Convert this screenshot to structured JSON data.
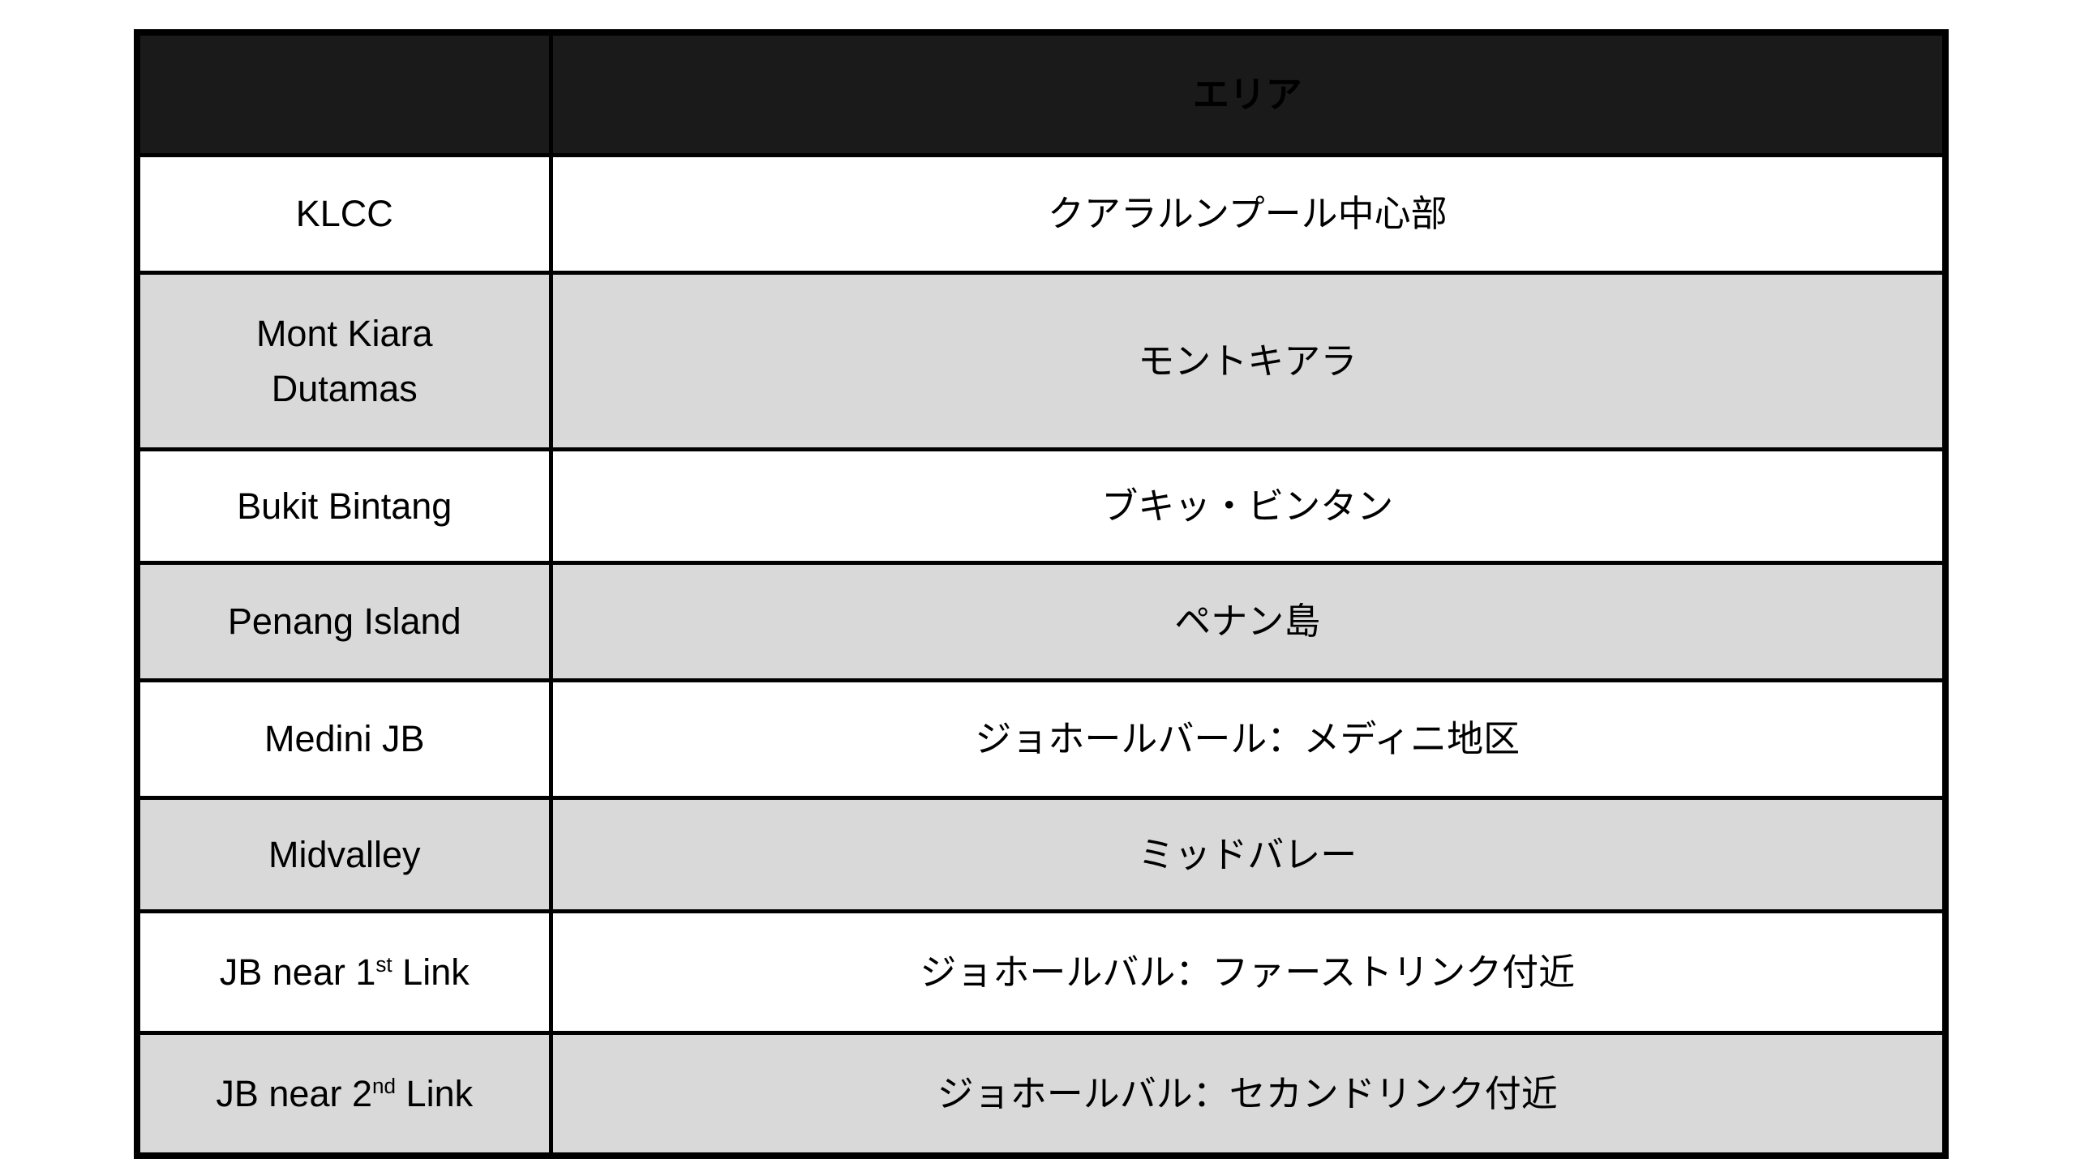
{
  "colors": {
    "header_bg": "#1a1a1a",
    "header_text": "#ffffff",
    "row_shaded_bg": "#d9d9d9",
    "row_plain_bg": "#ffffff",
    "border": "#000000",
    "text": "#000000"
  },
  "table": {
    "header": {
      "empty_label": "",
      "area_label": "エリア"
    },
    "rows": [
      {
        "en_pre": "KLCC",
        "en_sup": "",
        "en_post": "",
        "ja": "クアラルンプール中心部"
      },
      {
        "en_pre": "Mont Kiara\nDutamas",
        "en_sup": "",
        "en_post": "",
        "ja": "モントキアラ"
      },
      {
        "en_pre": "Bukit Bintang",
        "en_sup": "",
        "en_post": "",
        "ja": "ブキッ・ビンタン"
      },
      {
        "en_pre": "Penang Island",
        "en_sup": "",
        "en_post": "",
        "ja": "ペナン島"
      },
      {
        "en_pre": "Medini JB",
        "en_sup": "",
        "en_post": "",
        "ja": "ジョホールバール：メディニ地区"
      },
      {
        "en_pre": "Midvalley",
        "en_sup": "",
        "en_post": "",
        "ja": "ミッドバレー"
      },
      {
        "en_pre": "JB near 1",
        "en_sup": "st",
        "en_post": " Link",
        "ja": "ジョホールバル：ファーストリンク付近"
      },
      {
        "en_pre": "JB near 2",
        "en_sup": "nd",
        "en_post": " Link",
        "ja": "ジョホールバル：セカンドリンク付近"
      }
    ]
  }
}
